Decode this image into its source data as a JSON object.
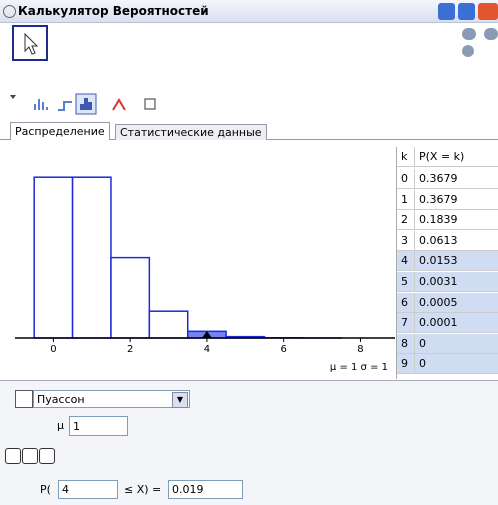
{
  "window": {
    "title": "Калькулятор Вероятностей"
  },
  "tabs": [
    "Распределение",
    "Статистические данные"
  ],
  "plot": {
    "xticks": [
      0,
      2,
      4,
      6,
      8
    ],
    "xlim": [
      -1,
      8.9
    ],
    "ylim": [
      0,
      0.437
    ],
    "stats": "μ = 1   σ = 1"
  },
  "table": {
    "header": [
      "k",
      "P(X = k)"
    ],
    "rows": [
      [
        0,
        0.3679
      ],
      [
        1,
        0.3679
      ],
      [
        2,
        0.1839
      ],
      [
        3,
        0.0613
      ],
      [
        4,
        0.0153
      ],
      [
        5,
        0.0031
      ],
      [
        6,
        0.0005
      ],
      [
        7,
        0.0001
      ],
      [
        8,
        0
      ],
      [
        9,
        0
      ]
    ]
  },
  "distribution": "Пуассон",
  "parameter": {
    "label": "μ",
    "value": 1
  },
  "probability": {
    "prefix": "P(",
    "lower": 4,
    "relation": "≤ X) =",
    "result": 0.019
  }
}
